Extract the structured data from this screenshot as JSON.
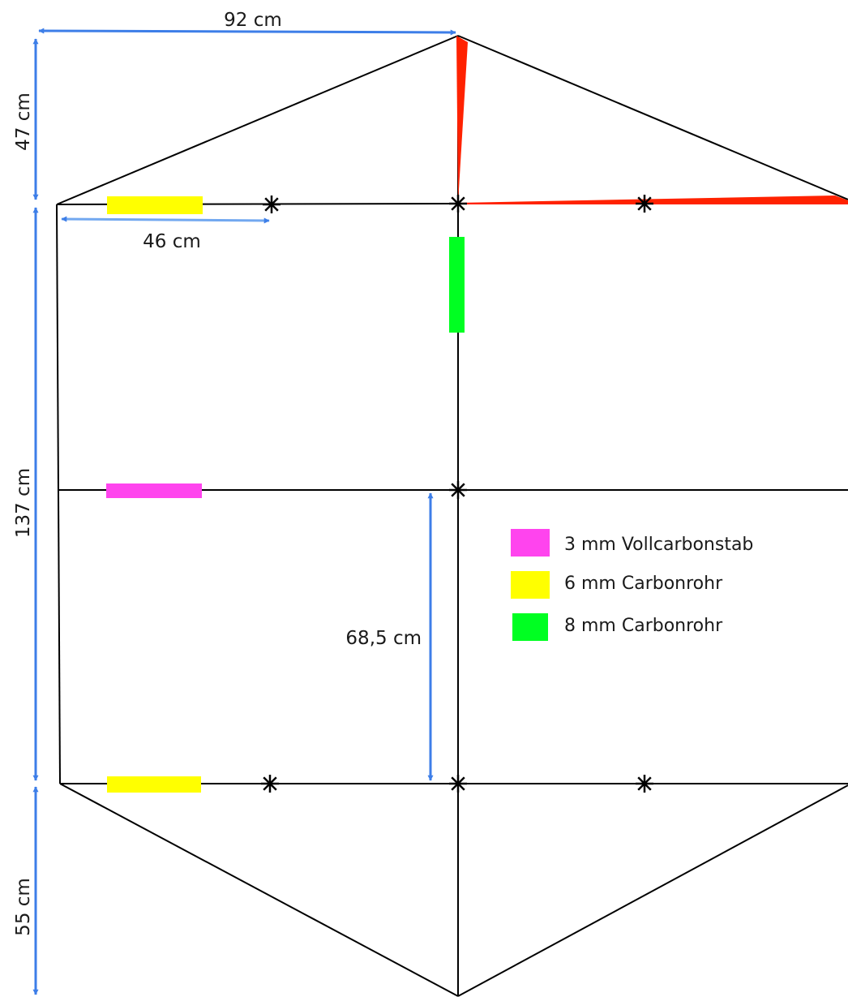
{
  "diagram": {
    "dimensions": {
      "top_width": "92 cm",
      "top_height": "47 cm",
      "half_spar": "46 cm",
      "body_height": "137 cm",
      "half_body": "68,5 cm",
      "bottom_height": "55 cm"
    },
    "legend": [
      {
        "label": "3 mm Vollcarbonstab",
        "color": "#ff44ee"
      },
      {
        "label": "6 mm Carbonrohr",
        "color": "#ffff00"
      },
      {
        "label": "8 mm Carbonrohr",
        "color": "#00ff22"
      }
    ],
    "colors": {
      "frame_line": "#000000",
      "dimension_arrow": "#3d7ee8",
      "dimension_arrow_light": "#72a8f0",
      "red_taper": "#ff2200"
    }
  }
}
